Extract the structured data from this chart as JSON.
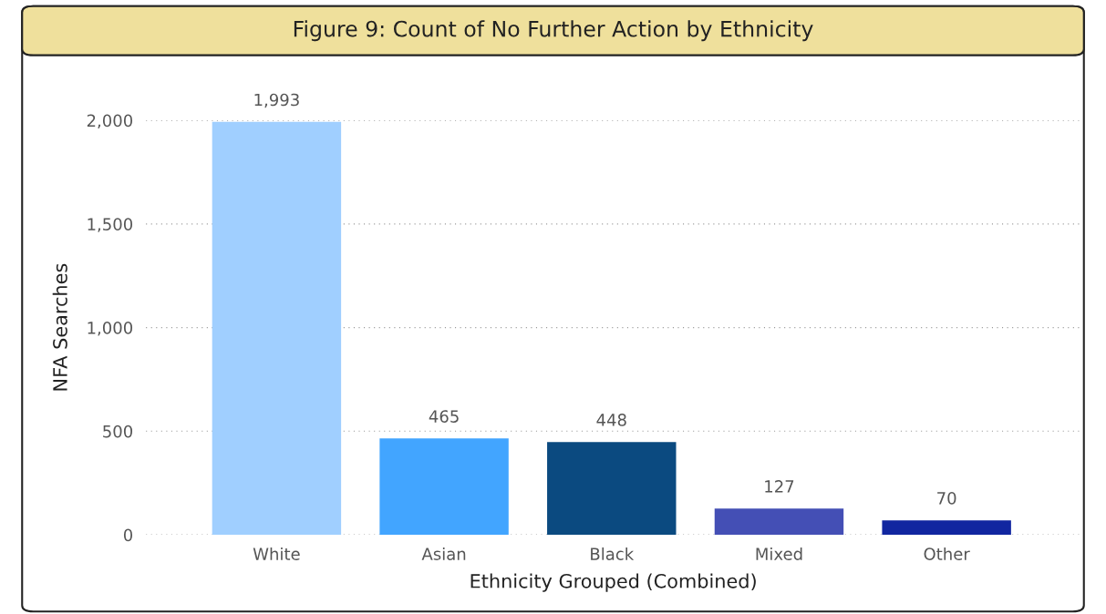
{
  "chart_data": {
    "type": "bar",
    "title": "Figure 9: Count of No Further Action by Ethnicity",
    "xlabel": "Ethnicity Grouped (Combined)",
    "ylabel": "NFA Searches",
    "categories": [
      "White",
      "Asian",
      "Black",
      "Mixed",
      "Other"
    ],
    "values": [
      1993,
      465,
      448,
      127,
      70
    ],
    "colors": [
      "#a0cfff",
      "#42a5ff",
      "#0b4a80",
      "#444fb5",
      "#1126a0"
    ],
    "ylim": [
      0,
      2000
    ],
    "yticks": [
      {
        "value": 0,
        "label": "0"
      },
      {
        "value": 500,
        "label": "500"
      },
      {
        "value": 1000,
        "label": "1,000"
      },
      {
        "value": 1500,
        "label": "1,500"
      },
      {
        "value": 2000,
        "label": "2,000"
      }
    ],
    "value_labels": [
      "1,993",
      "465",
      "448",
      "127",
      "70"
    ],
    "grid": "y",
    "legend": false
  }
}
